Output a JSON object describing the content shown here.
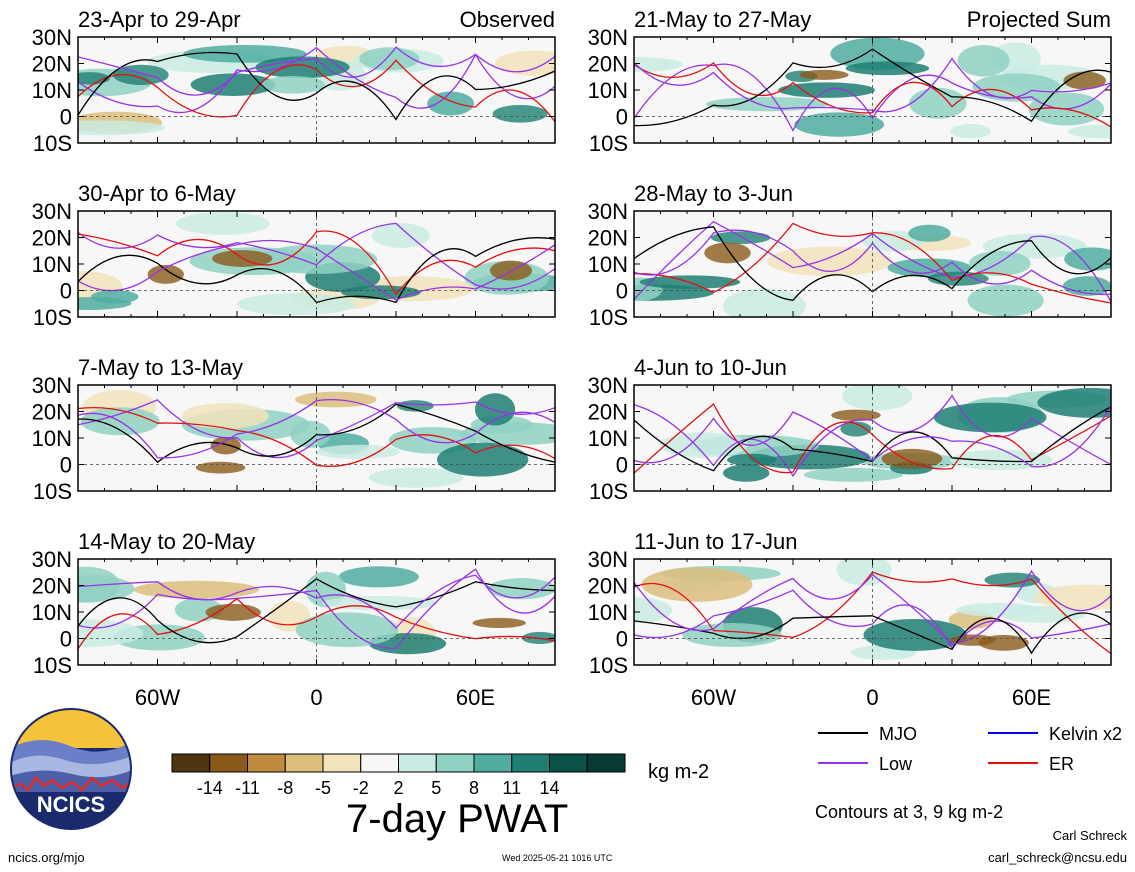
{
  "chart_data": [
    {
      "type": "heatmap",
      "column": "left",
      "panel": 0,
      "title": "23-Apr to 29-Apr",
      "tag": "Observed"
    },
    {
      "type": "heatmap",
      "column": "left",
      "panel": 1,
      "title": "30-Apr to 6-May",
      "tag": ""
    },
    {
      "type": "heatmap",
      "column": "left",
      "panel": 2,
      "title": "7-May to 13-May",
      "tag": ""
    },
    {
      "type": "heatmap",
      "column": "left",
      "panel": 3,
      "title": "14-May to 20-May",
      "tag": ""
    },
    {
      "type": "heatmap",
      "column": "right",
      "panel": 0,
      "title": "21-May to 27-May",
      "tag": "Projected Sum"
    },
    {
      "type": "heatmap",
      "column": "right",
      "panel": 1,
      "title": "28-May to 3-Jun",
      "tag": ""
    },
    {
      "type": "heatmap",
      "column": "right",
      "panel": 2,
      "title": "4-Jun to 10-Jun",
      "tag": ""
    },
    {
      "type": "heatmap",
      "column": "right",
      "panel": 3,
      "title": "11-Jun to 17-Jun",
      "tag": ""
    }
  ],
  "axes": {
    "lat_ticks": [
      "30N",
      "20N",
      "10N",
      "0",
      "10S"
    ],
    "lat_values": [
      30,
      20,
      10,
      0,
      -10
    ],
    "lon_ticks": [
      "60W",
      "0",
      "60E"
    ],
    "lon_values": [
      -60,
      0,
      60
    ],
    "lon_range": [
      -90,
      90
    ],
    "lat_range": [
      -10,
      30
    ]
  },
  "colorbar": {
    "labels": [
      "-14",
      "-11",
      "-8",
      "-5",
      "-2",
      "2",
      "5",
      "8",
      "11",
      "14"
    ],
    "colors": [
      "#4d3510",
      "#8a5a1a",
      "#c08a3f",
      "#dcbd7c",
      "#f2e3bb",
      "#f7f7f7",
      "#c9ebe3",
      "#8fd1c3",
      "#4fada0",
      "#1f7f74",
      "#0a5147",
      "#063a32"
    ],
    "units": "kg m-2",
    "title": "7-day PWAT"
  },
  "legend": {
    "items": [
      {
        "label": "MJO",
        "color": "#000000"
      },
      {
        "label": "Kelvin x2",
        "color": "#0000ee"
      },
      {
        "label": "Low",
        "color": "#9932e6"
      },
      {
        "label": "ER",
        "color": "#e31010"
      }
    ],
    "note": "Contours at 3, 9 kg m-2"
  },
  "footer": {
    "left": "ncics.org/mjo",
    "center": "Wed 2025-05-21 1016 UTC",
    "author": "Carl Schreck",
    "email": "carl_schreck@ncsu.edu"
  },
  "logo": {
    "text": "NCICS"
  }
}
